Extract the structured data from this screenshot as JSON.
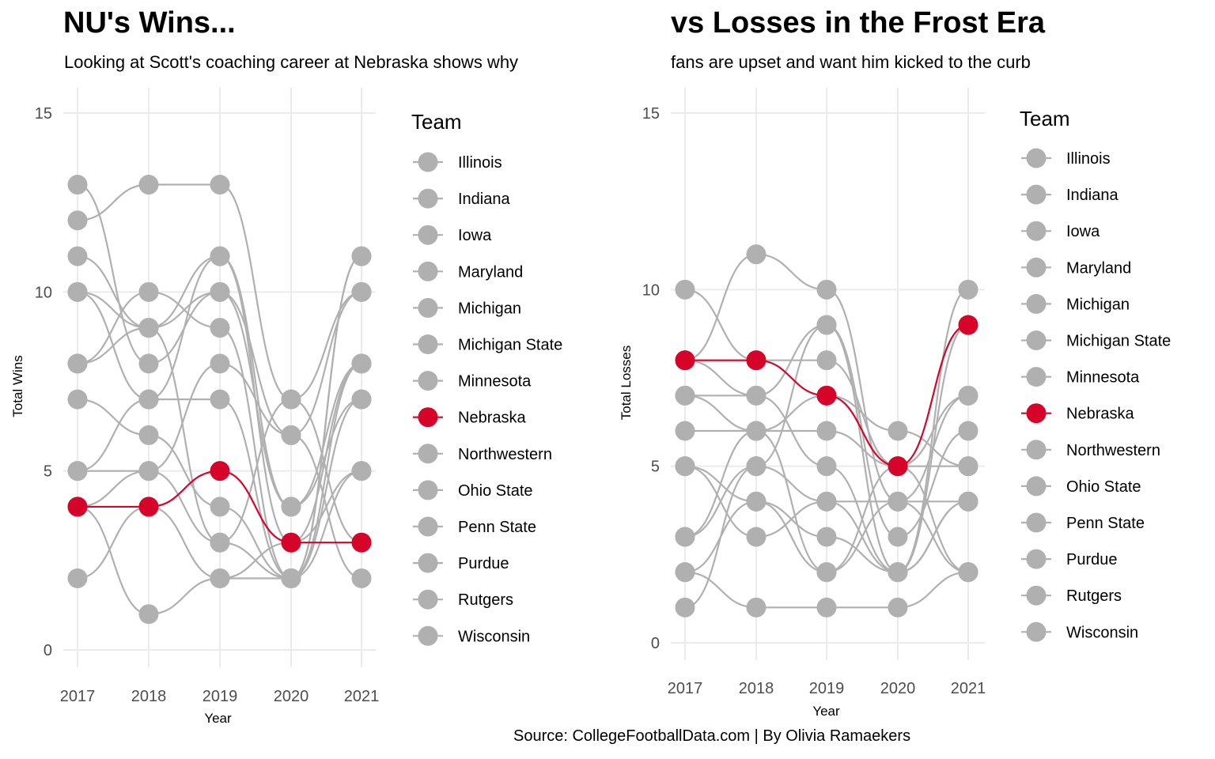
{
  "colors": {
    "highlight": "#d7042a",
    "other": "#b0b0b0",
    "grid": "#ebebeb"
  },
  "caption": "Source: CollegeFootballData.com | By Olivia Ramaekers",
  "chart_data": [
    {
      "type": "line",
      "style": "bump",
      "title": "NU's Wins...",
      "subtitle": "Looking at Scott's coaching career at Nebraska shows why",
      "xlabel": "Year",
      "ylabel": "Total Wins",
      "ylim": [
        0,
        15
      ],
      "yticks": [
        "0",
        "5",
        "10",
        "15"
      ],
      "x": [
        "2017",
        "2018",
        "2019",
        "2020",
        "2021"
      ],
      "grid": true,
      "legend_title": "Team",
      "legend_position": "right",
      "highlight": "Nebraska",
      "series": [
        {
          "name": "Illinois",
          "values": [
            2,
            4,
            2,
            2,
            5
          ]
        },
        {
          "name": "Indiana",
          "values": [
            5,
            5,
            8,
            6,
            2
          ]
        },
        {
          "name": "Iowa",
          "values": [
            8,
            9,
            10,
            6,
            10
          ]
        },
        {
          "name": "Maryland",
          "values": [
            4,
            5,
            3,
            2,
            7
          ]
        },
        {
          "name": "Michigan",
          "values": [
            8,
            10,
            9,
            2,
            11
          ]
        },
        {
          "name": "Michigan State",
          "values": [
            10,
            7,
            7,
            2,
            11
          ]
        },
        {
          "name": "Minnesota",
          "values": [
            5,
            7,
            11,
            3,
            8
          ]
        },
        {
          "name": "Nebraska",
          "values": [
            4,
            4,
            5,
            3,
            3
          ]
        },
        {
          "name": "Northwestern",
          "values": [
            10,
            9,
            3,
            7,
            3
          ]
        },
        {
          "name": "Ohio State",
          "values": [
            12,
            13,
            13,
            7,
            10
          ]
        },
        {
          "name": "Penn State",
          "values": [
            11,
            9,
            11,
            4,
            7
          ]
        },
        {
          "name": "Purdue",
          "values": [
            7,
            6,
            4,
            2,
            8
          ]
        },
        {
          "name": "Rutgers",
          "values": [
            4,
            1,
            2,
            3,
            5
          ]
        },
        {
          "name": "Wisconsin",
          "values": [
            13,
            8,
            10,
            4,
            8
          ]
        }
      ]
    },
    {
      "type": "line",
      "style": "bump",
      "title": "vs Losses in the Frost Era",
      "subtitle": "fans are upset and want him kicked to the curb",
      "xlabel": "Year",
      "ylabel": "Total Losses",
      "ylim": [
        0,
        15
      ],
      "yticks": [
        "0",
        "5",
        "10",
        "15"
      ],
      "x": [
        "2017",
        "2018",
        "2019",
        "2020",
        "2021"
      ],
      "grid": true,
      "legend_title": "Team",
      "legend_position": "right",
      "highlight": "Nebraska",
      "series": [
        {
          "name": "Illinois",
          "values": [
            10,
            8,
            8,
            5,
            7
          ]
        },
        {
          "name": "Indiana",
          "values": [
            7,
            7,
            5,
            2,
            10
          ]
        },
        {
          "name": "Iowa",
          "values": [
            5,
            4,
            3,
            2,
            4
          ]
        },
        {
          "name": "Maryland",
          "values": [
            8,
            7,
            9,
            3,
            6
          ]
        },
        {
          "name": "Michigan",
          "values": [
            5,
            3,
            4,
            4,
            2
          ]
        },
        {
          "name": "Michigan State",
          "values": [
            3,
            6,
            6,
            5,
            2
          ]
        },
        {
          "name": "Minnesota",
          "values": [
            7,
            6,
            2,
            4,
            4
          ]
        },
        {
          "name": "Nebraska",
          "values": [
            8,
            8,
            7,
            5,
            9
          ]
        },
        {
          "name": "Northwestern",
          "values": [
            3,
            5,
            9,
            2,
            9
          ]
        },
        {
          "name": "Ohio State",
          "values": [
            2,
            1,
            1,
            1,
            2
          ]
        },
        {
          "name": "Penn State",
          "values": [
            2,
            4,
            2,
            5,
            5
          ]
        },
        {
          "name": "Purdue",
          "values": [
            6,
            6,
            7,
            6,
            5
          ]
        },
        {
          "name": "Rutgers",
          "values": [
            8,
            11,
            10,
            4,
            7
          ]
        },
        {
          "name": "Wisconsin",
          "values": [
            1,
            5,
            4,
            2,
            4
          ]
        }
      ]
    }
  ]
}
